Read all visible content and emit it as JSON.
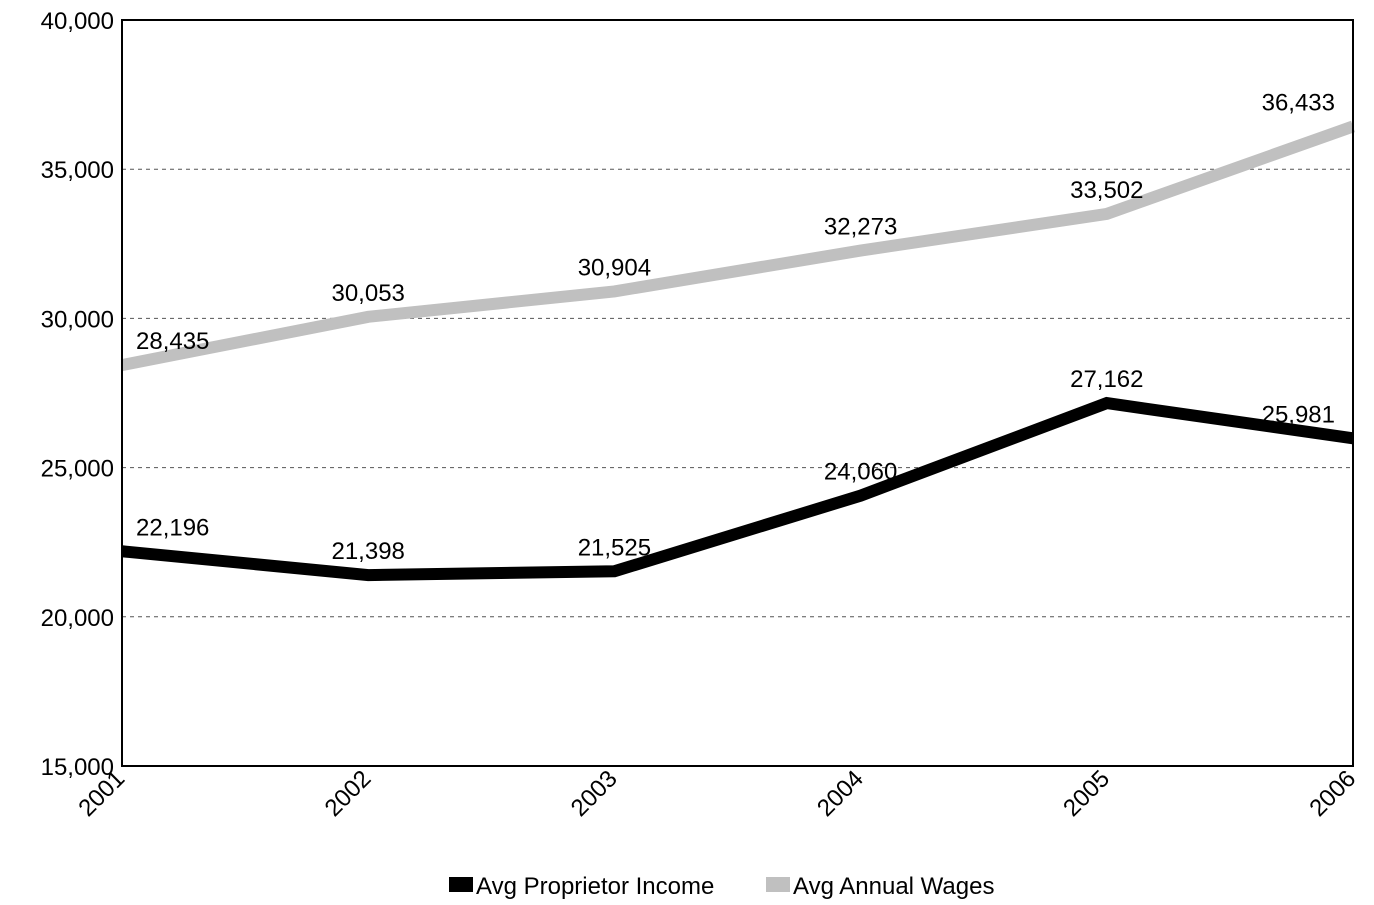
{
  "chart_data": {
    "type": "line",
    "categories": [
      "2001",
      "2002",
      "2003",
      "2004",
      "2005",
      "2006"
    ],
    "series": [
      {
        "name": "Avg Proprietor Income",
        "values": [
          22196,
          21398,
          21525,
          24060,
          27162,
          25981
        ],
        "labels": [
          "22,196",
          "21,398",
          "21,525",
          "24,060",
          "27,162",
          "25,981"
        ],
        "color": "#000000"
      },
      {
        "name": "Avg Annual Wages",
        "values": [
          28435,
          30053,
          30904,
          32273,
          33502,
          36433
        ],
        "labels": [
          "28,435",
          "30,053",
          "30,904",
          "32,273",
          "33,502",
          "36,433"
        ],
        "color": "#c0c0c0"
      }
    ],
    "y_ticks": [
      15000,
      20000,
      25000,
      30000,
      35000,
      40000
    ],
    "y_tick_labels": [
      "15,000",
      "20,000",
      "25,000",
      "30,000",
      "35,000",
      "40,000"
    ],
    "ylim": [
      15000,
      40000
    ],
    "grid": "horizontal-dashed",
    "legend_position": "bottom"
  }
}
